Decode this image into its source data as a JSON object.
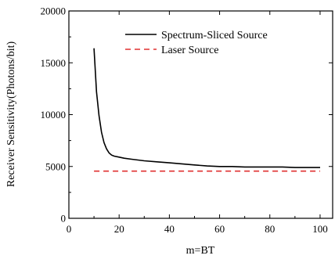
{
  "chart_data": {
    "type": "line",
    "title": "",
    "xlabel": "m=BT",
    "ylabel": "Receiver Sensitivity(Photons/bit)",
    "xlim": [
      0,
      105
    ],
    "ylim": [
      0,
      20000
    ],
    "xticks": [
      0,
      20,
      40,
      60,
      80,
      100
    ],
    "yticks": [
      0,
      5000,
      10000,
      15000,
      20000
    ],
    "grid": false,
    "legend_position": "top-right",
    "series": [
      {
        "name": "Spectrum-Sliced Source",
        "color": "#000000",
        "style": "solid",
        "x": [
          10,
          11,
          12,
          13,
          14,
          15,
          16,
          17,
          18,
          20,
          22,
          25,
          30,
          35,
          40,
          45,
          50,
          55,
          60,
          65,
          70,
          75,
          80,
          85,
          90,
          95,
          100
        ],
        "y": [
          16400,
          12200,
          9900,
          8300,
          7300,
          6700,
          6300,
          6100,
          6000,
          5900,
          5800,
          5700,
          5550,
          5450,
          5350,
          5250,
          5150,
          5050,
          5000,
          5000,
          4950,
          4950,
          4950,
          4950,
          4900,
          4900,
          4900
        ]
      },
      {
        "name": "Laser Source",
        "color": "#e03030",
        "style": "dashed",
        "x": [
          10,
          100
        ],
        "y": [
          4550,
          4550
        ]
      }
    ]
  }
}
